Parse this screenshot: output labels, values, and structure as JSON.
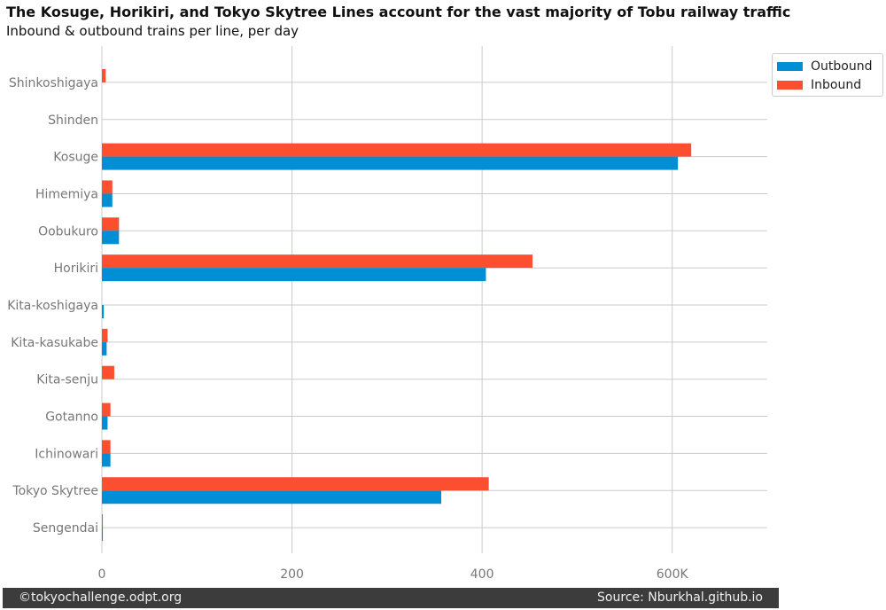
{
  "chart_data": {
    "type": "bar",
    "orientation": "horizontal",
    "title": "The Kosuge, Horikiri, and Tokyo Skytree Lines account for the vast majority of Tobu railway traffic",
    "subtitle": "Inbound & outbound trains per line, per day",
    "categories": [
      "Shinkoshigaya",
      "Shinden",
      "Kosuge",
      "Himemiya",
      "Oobukuro",
      "Horikiri",
      "Kita-koshigaya",
      "Kita-kasukabe",
      "Kita-senju",
      "Gotanno",
      "Ichinowari",
      "Tokyo Skytree",
      "Sengendai"
    ],
    "series": [
      {
        "name": "Outbound",
        "color": "#008fd5",
        "values": [
          0,
          0,
          606,
          11,
          18,
          404,
          2,
          5,
          0,
          6,
          9,
          357,
          1
        ]
      },
      {
        "name": "Inbound",
        "color": "#fc4f30",
        "values": [
          4,
          0,
          620,
          11,
          18,
          453,
          0,
          6,
          13,
          9,
          9,
          407,
          1
        ]
      }
    ],
    "xticks": [
      0,
      200,
      400,
      600
    ],
    "xtick_labels": [
      "0",
      "200",
      "400",
      "600K"
    ],
    "xlim": [
      0,
      700
    ],
    "grid": true,
    "legend_position": "top-right"
  },
  "footer": {
    "left": "©tokyochallenge.odpt.org",
    "right": "Source: Nburkhal.github.io"
  }
}
